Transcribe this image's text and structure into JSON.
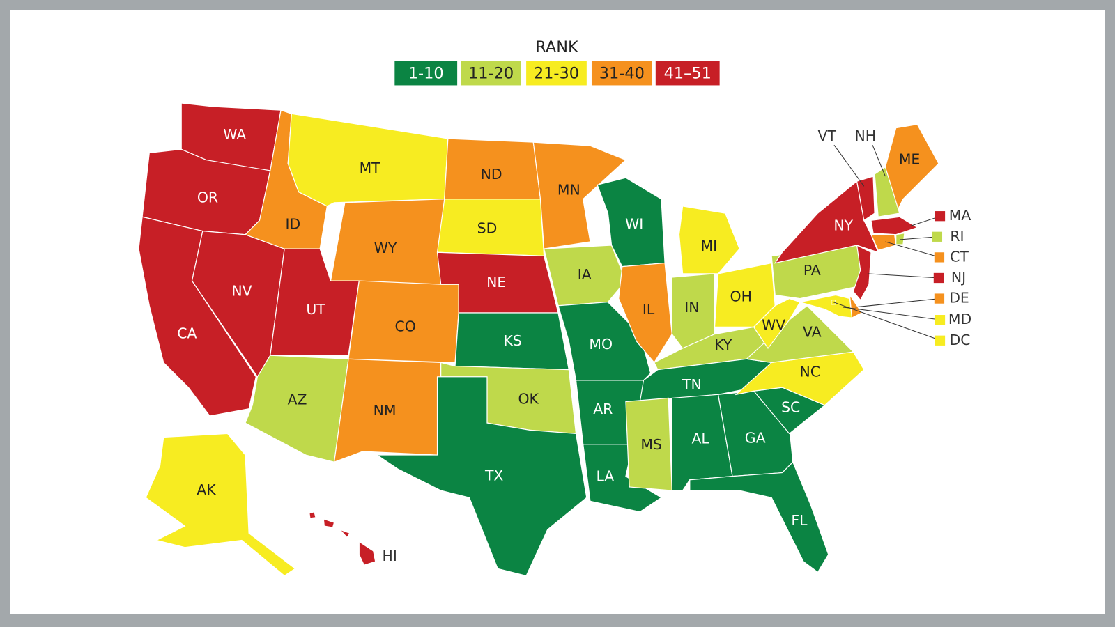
{
  "legend": {
    "title": "RANK",
    "items": [
      {
        "label": "1-10",
        "color": "#0b8443"
      },
      {
        "label": "11-20",
        "color": "#bfd94b"
      },
      {
        "label": "21-30",
        "color": "#f7ec21"
      },
      {
        "label": "31-40",
        "color": "#f5911e"
      },
      {
        "label": "41–51",
        "color": "#c71f26"
      }
    ]
  },
  "states": [
    {
      "abbr": "WA",
      "color": "#c71f26"
    },
    {
      "abbr": "OR",
      "color": "#c71f26"
    },
    {
      "abbr": "CA",
      "color": "#c71f26"
    },
    {
      "abbr": "NV",
      "color": "#c71f26"
    },
    {
      "abbr": "ID",
      "color": "#f5911e"
    },
    {
      "abbr": "MT",
      "color": "#f7ec21"
    },
    {
      "abbr": "WY",
      "color": "#f5911e"
    },
    {
      "abbr": "UT",
      "color": "#c71f26"
    },
    {
      "abbr": "CO",
      "color": "#f5911e"
    },
    {
      "abbr": "AZ",
      "color": "#bfd94b"
    },
    {
      "abbr": "NM",
      "color": "#f5911e"
    },
    {
      "abbr": "ND",
      "color": "#f5911e"
    },
    {
      "abbr": "SD",
      "color": "#f7ec21"
    },
    {
      "abbr": "NE",
      "color": "#c71f26"
    },
    {
      "abbr": "KS",
      "color": "#0b8443"
    },
    {
      "abbr": "OK",
      "color": "#bfd94b"
    },
    {
      "abbr": "TX",
      "color": "#0b8443"
    },
    {
      "abbr": "MN",
      "color": "#f5911e"
    },
    {
      "abbr": "IA",
      "color": "#bfd94b"
    },
    {
      "abbr": "MO",
      "color": "#0b8443"
    },
    {
      "abbr": "AR",
      "color": "#0b8443"
    },
    {
      "abbr": "LA",
      "color": "#0b8443"
    },
    {
      "abbr": "WI",
      "color": "#0b8443"
    },
    {
      "abbr": "IL",
      "color": "#f5911e"
    },
    {
      "abbr": "MI",
      "color": "#f7ec21"
    },
    {
      "abbr": "IN",
      "color": "#bfd94b"
    },
    {
      "abbr": "OH",
      "color": "#f7ec21"
    },
    {
      "abbr": "KY",
      "color": "#bfd94b"
    },
    {
      "abbr": "TN",
      "color": "#0b8443"
    },
    {
      "abbr": "MS",
      "color": "#bfd94b"
    },
    {
      "abbr": "AL",
      "color": "#0b8443"
    },
    {
      "abbr": "GA",
      "color": "#0b8443"
    },
    {
      "abbr": "FL",
      "color": "#0b8443"
    },
    {
      "abbr": "SC",
      "color": "#0b8443"
    },
    {
      "abbr": "NC",
      "color": "#f7ec21"
    },
    {
      "abbr": "VA",
      "color": "#bfd94b"
    },
    {
      "abbr": "WV",
      "color": "#f7ec21"
    },
    {
      "abbr": "PA",
      "color": "#bfd94b"
    },
    {
      "abbr": "NY",
      "color": "#c71f26"
    },
    {
      "abbr": "ME",
      "color": "#f5911e"
    },
    {
      "abbr": "VT",
      "color": "#c71f26"
    },
    {
      "abbr": "NH",
      "color": "#bfd94b"
    },
    {
      "abbr": "MA",
      "color": "#c71f26"
    },
    {
      "abbr": "RI",
      "color": "#bfd94b"
    },
    {
      "abbr": "CT",
      "color": "#f5911e"
    },
    {
      "abbr": "NJ",
      "color": "#c71f26"
    },
    {
      "abbr": "DE",
      "color": "#f5911e"
    },
    {
      "abbr": "MD",
      "color": "#f7ec21"
    },
    {
      "abbr": "DC",
      "color": "#f7ec21"
    },
    {
      "abbr": "AK",
      "color": "#f7ec21"
    },
    {
      "abbr": "HI",
      "color": "#c71f26"
    }
  ]
}
